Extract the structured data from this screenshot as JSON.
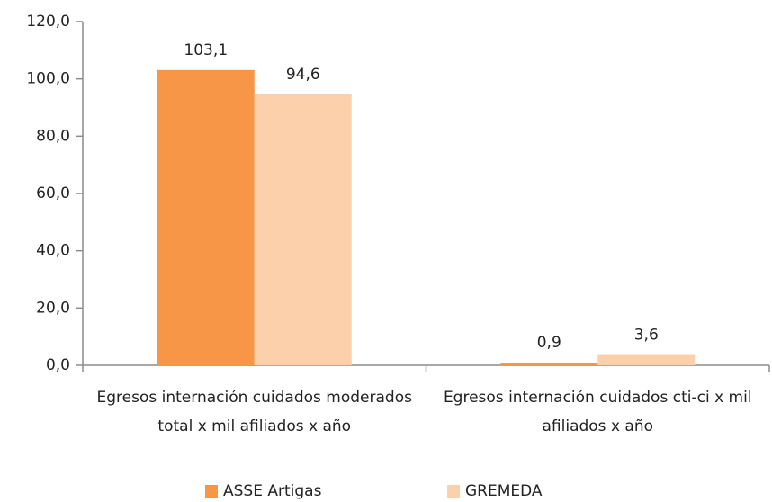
{
  "chart_data": {
    "type": "bar",
    "categories": [
      "Egresos internación cuidados moderados total x mil afiliados x año",
      "Egresos internación cuidados cti-ci x mil afiliados x año"
    ],
    "series": [
      {
        "name": "ASSE Artigas",
        "color": "#f79646",
        "values": [
          103.1,
          0.9
        ],
        "value_labels": [
          "103,1",
          "0,9"
        ]
      },
      {
        "name": "GREMEDA",
        "color": "#fbd0ab",
        "values": [
          94.6,
          3.6
        ],
        "value_labels": [
          "94,6",
          "3,6"
        ]
      }
    ],
    "ylim": [
      0,
      120
    ],
    "yticks": [
      {
        "value": 0,
        "label": "0,0"
      },
      {
        "value": 20,
        "label": "20,0"
      },
      {
        "value": 40,
        "label": "40,0"
      },
      {
        "value": 60,
        "label": "60,0"
      },
      {
        "value": 80,
        "label": "80,0"
      },
      {
        "value": 100,
        "label": "100,0"
      },
      {
        "value": 120,
        "label": "120,0"
      }
    ],
    "grid": false,
    "legend": "bottom"
  }
}
